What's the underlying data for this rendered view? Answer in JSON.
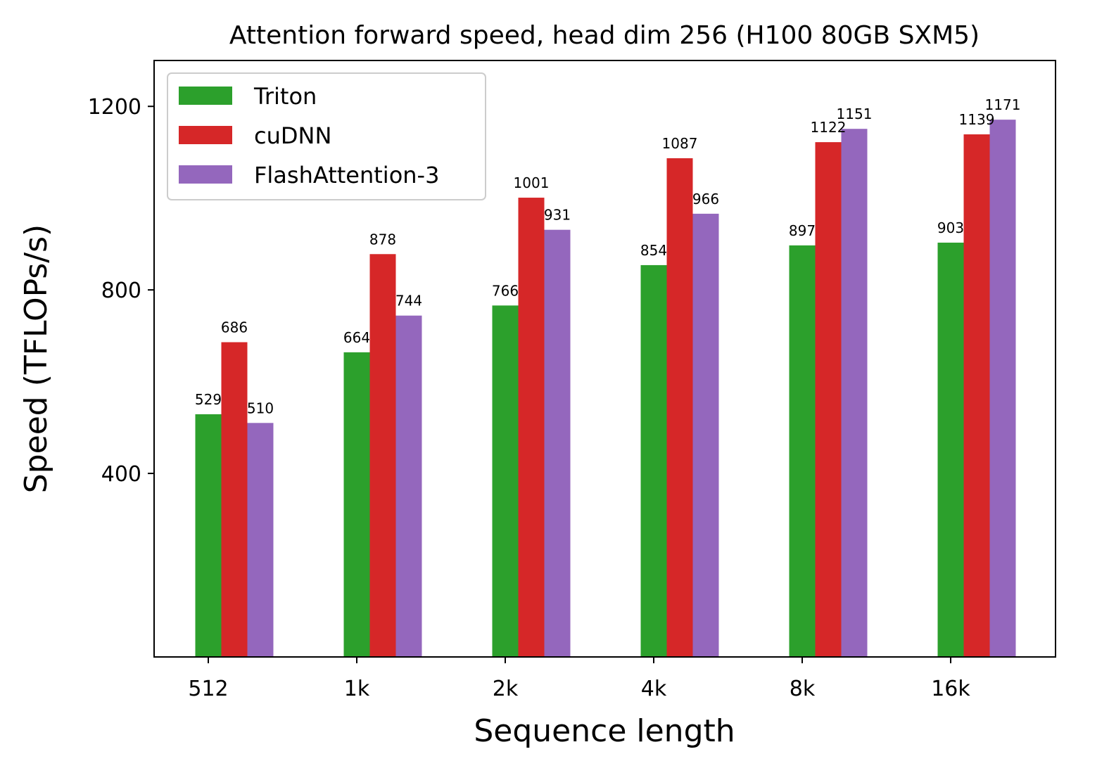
{
  "chart_data": {
    "type": "bar",
    "title": "Attention forward speed, head dim 256 (H100 80GB SXM5)",
    "xlabel": "Sequence length",
    "ylabel": "Speed (TFLOPs/s)",
    "categories": [
      "512",
      "1k",
      "2k",
      "4k",
      "8k",
      "16k"
    ],
    "ylim": [
      0,
      1300
    ],
    "yticks": [
      400,
      800,
      1200
    ],
    "grid": false,
    "legend_position": "top-left",
    "series": [
      {
        "name": "Triton",
        "color": "#2ca02c",
        "values": [
          529,
          664,
          766,
          854,
          897,
          903
        ]
      },
      {
        "name": "cuDNN",
        "color": "#d62728",
        "values": [
          686,
          878,
          1001,
          1087,
          1122,
          1139
        ]
      },
      {
        "name": "FlashAttention-3",
        "color": "#9467bd",
        "values": [
          510,
          744,
          931,
          966,
          1151,
          1171
        ]
      }
    ]
  }
}
